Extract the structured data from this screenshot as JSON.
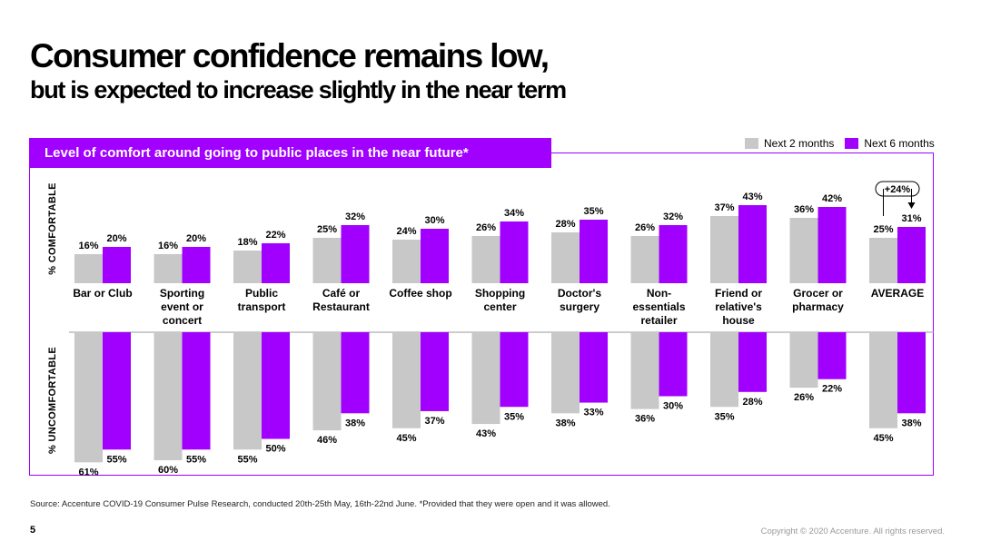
{
  "header": {
    "title": "Consumer confidence remains low,",
    "subtitle": "but is expected to increase slightly in the near term"
  },
  "banner": {
    "text": "Level of comfort around going to public places in the near future*"
  },
  "axis_labels": {
    "top": "% COMFORTABLE",
    "bottom": "% UNCOMFORTABLE"
  },
  "footer": {
    "source": "Source: Accenture COVID-19 Consumer Pulse Research, conducted 20th-25th May, 16th-22nd June. *Provided that they were open and it was allowed.",
    "page_number": "5",
    "copyright": "Copyright © 2020 Accenture. All rights reserved."
  },
  "colors": {
    "accent": "#a100ff",
    "grey": "#c8c8c8"
  },
  "chart_data": {
    "type": "bar",
    "categories": [
      [
        "Bar or Club"
      ],
      [
        "Sporting",
        "event or",
        "concert"
      ],
      [
        "Public",
        "transport"
      ],
      [
        "Café or",
        "Restaurant"
      ],
      [
        "Coffee shop"
      ],
      [
        "Shopping",
        "center"
      ],
      [
        "Doctor's",
        "surgery"
      ],
      [
        "Non-",
        "essentials",
        "retailer"
      ],
      [
        "Friend or",
        "relative's",
        "house"
      ],
      [
        "Grocer or",
        "pharmacy"
      ],
      [
        "AVERAGE"
      ]
    ],
    "series": [
      {
        "name": "Next 2 months",
        "color": "#c8c8c8",
        "comfortable": [
          16,
          16,
          18,
          25,
          24,
          26,
          28,
          26,
          37,
          36,
          25
        ],
        "uncomfortable": [
          61,
          60,
          55,
          46,
          45,
          43,
          38,
          36,
          35,
          26,
          45
        ]
      },
      {
        "name": "Next 6 months",
        "color": "#a100ff",
        "comfortable": [
          20,
          20,
          22,
          32,
          30,
          34,
          35,
          32,
          43,
          42,
          31
        ],
        "uncomfortable": [
          55,
          55,
          50,
          38,
          37,
          35,
          33,
          30,
          28,
          22,
          38
        ]
      }
    ],
    "annotation": {
      "text": "+24%",
      "category": "AVERAGE"
    }
  }
}
